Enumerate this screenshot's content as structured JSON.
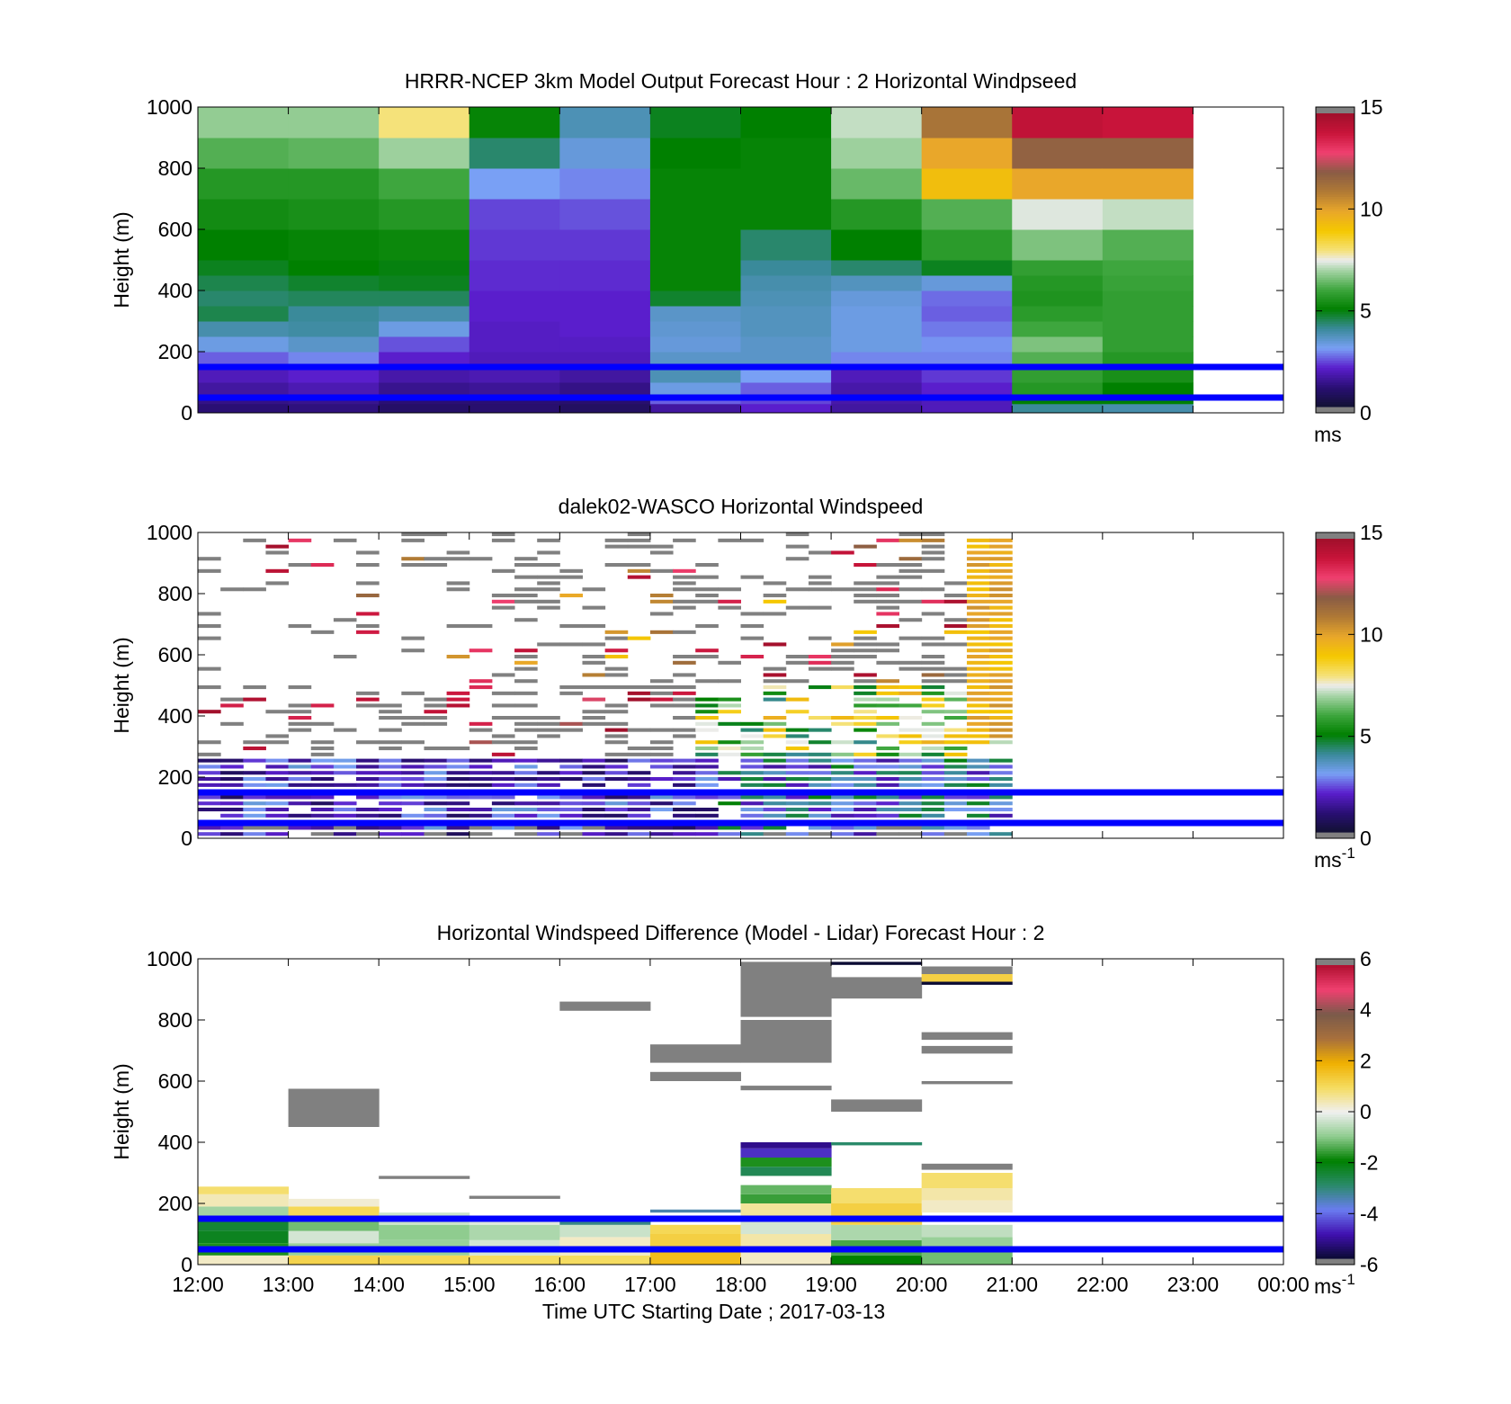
{
  "figure": {
    "x_tick_labels": [
      "12:00",
      "13:00",
      "14:00",
      "15:00",
      "16:00",
      "17:00",
      "18:00",
      "19:00",
      "20:00",
      "21:00",
      "22:00",
      "23:00",
      "00:00"
    ],
    "xlabel": "Time UTC  Starting Date ; 2017-03-13",
    "reference_lines": {
      "heights_m": [
        150,
        50
      ],
      "color": "#0000ff"
    }
  },
  "chart_data": [
    {
      "type": "heatmap",
      "title": "HRRR-NCEP 3km Model Output   Forecast Hour : 2 Horizontal Windpseed",
      "ylabel": "Height (m)",
      "ylim": [
        0,
        1000
      ],
      "y_ticks": [
        0,
        200,
        400,
        600,
        800,
        1000
      ],
      "colorbar": {
        "ticks": [
          0,
          5,
          10,
          15
        ],
        "range": [
          0,
          15
        ],
        "unit": "ms",
        "unit_sup": ""
      },
      "x_hours": [
        12,
        13,
        14,
        15,
        16,
        17,
        18,
        19,
        20,
        21,
        22
      ],
      "height_bins_m": [
        0,
        30,
        60,
        100,
        150,
        200,
        250,
        300,
        350,
        400,
        450,
        500,
        600,
        700,
        800,
        900,
        1000
      ],
      "values": [
        [
          1.0,
          1.2,
          1.5,
          1.8,
          2.5,
          3.2,
          3.8,
          4.5,
          4.3,
          4.5,
          4.8,
          5.0,
          5.3,
          5.6,
          6.2,
          6.8
        ],
        [
          1.1,
          1.3,
          1.7,
          2.0,
          2.8,
          3.5,
          3.9,
          4.0,
          4.4,
          4.7,
          5.0,
          5.1,
          5.4,
          5.6,
          6.3,
          6.8
        ],
        [
          0.8,
          1.0,
          1.3,
          1.6,
          2.0,
          2.4,
          3.2,
          3.8,
          4.4,
          4.8,
          4.9,
          5.2,
          5.6,
          6.0,
          6.9,
          8.0
        ],
        [
          0.9,
          1.0,
          1.4,
          1.7,
          1.8,
          1.9,
          1.9,
          2.0,
          2.0,
          2.1,
          2.1,
          2.2,
          2.3,
          3.0,
          4.3,
          5.1
        ],
        [
          0.7,
          0.9,
          1.2,
          1.5,
          1.8,
          1.9,
          2.0,
          2.0,
          2.0,
          2.1,
          2.1,
          2.2,
          2.4,
          2.8,
          3.3,
          3.7
        ],
        [
          1.5,
          2.5,
          3.2,
          3.7,
          3.5,
          3.3,
          3.4,
          3.5,
          4.7,
          5.1,
          5.1,
          5.1,
          5.1,
          5.1,
          5.0,
          4.8
        ],
        [
          2.0,
          2.3,
          2.5,
          3.0,
          3.5,
          3.5,
          3.6,
          3.6,
          3.7,
          3.8,
          4.0,
          4.3,
          5.1,
          5.1,
          5.1,
          5.0
        ],
        [
          1.5,
          1.6,
          1.6,
          1.8,
          2.8,
          3.2,
          3.2,
          3.2,
          3.3,
          3.6,
          4.3,
          5.0,
          5.6,
          6.4,
          6.9,
          7.2
        ],
        [
          1.8,
          1.8,
          2.0,
          2.2,
          2.8,
          2.9,
          2.7,
          2.5,
          2.6,
          3.3,
          4.8,
          5.7,
          6.2,
          9.3,
          10.0,
          11.2
        ],
        [
          4.0,
          5.0,
          5.6,
          5.8,
          6.2,
          6.6,
          6.0,
          5.7,
          5.5,
          5.6,
          5.8,
          6.6,
          7.4,
          10.0,
          11.8,
          14.2
        ],
        [
          3.8,
          5.0,
          5.0,
          5.4,
          5.6,
          5.8,
          5.8,
          5.8,
          5.8,
          5.9,
          6.0,
          6.2,
          7.2,
          10.0,
          11.8,
          14.0
        ]
      ]
    },
    {
      "type": "heatmap",
      "title": "dalek02-WASCO  Horizontal Windspeed",
      "ylabel": "Height (m)",
      "ylim": [
        0,
        1000
      ],
      "y_ticks": [
        0,
        200,
        400,
        600,
        800,
        1000
      ],
      "colorbar": {
        "ticks": [
          0,
          5,
          10,
          15
        ],
        "range": [
          0,
          15
        ],
        "unit": "ms",
        "unit_sup": "-1"
      },
      "x_range_hours": [
        12,
        20.8
      ],
      "gate_spacing_m": 20
    },
    {
      "type": "heatmap",
      "title": "Horizontal Windspeed Difference (Model - Lidar) Forecast Hour : 2",
      "ylabel": "Height (m)",
      "ylim": [
        0,
        1000
      ],
      "y_ticks": [
        0,
        200,
        400,
        600,
        800,
        1000
      ],
      "colorbar": {
        "ticks": [
          -6,
          -4,
          -2,
          0,
          2,
          4,
          6
        ],
        "range": [
          -6,
          6
        ],
        "unit": "ms",
        "unit_sup": "-1"
      },
      "cells": [
        {
          "t": 12,
          "y0": 0,
          "y1": 30,
          "v": 0.3
        },
        {
          "t": 12,
          "y0": 30,
          "y1": 70,
          "v": -1.8
        },
        {
          "t": 12,
          "y0": 70,
          "y1": 110,
          "v": -2.3
        },
        {
          "t": 12,
          "y0": 110,
          "y1": 150,
          "v": -2.5
        },
        {
          "t": 12,
          "y0": 150,
          "y1": 190,
          "v": -0.8
        },
        {
          "t": 12,
          "y0": 190,
          "y1": 230,
          "v": 0.4
        },
        {
          "t": 12,
          "y0": 230,
          "y1": 255,
          "v": 0.9
        },
        {
          "t": 13,
          "y0": 0,
          "y1": 30,
          "v": 1.2
        },
        {
          "t": 13,
          "y0": 30,
          "y1": 70,
          "v": -0.9
        },
        {
          "t": 13,
          "y0": 70,
          "y1": 110,
          "v": -0.3
        },
        {
          "t": 13,
          "y0": 110,
          "y1": 150,
          "v": -1.2
        },
        {
          "t": 13,
          "y0": 150,
          "y1": 190,
          "v": 1.1
        },
        {
          "t": 13,
          "y0": 190,
          "y1": 215,
          "v": 0.2
        },
        {
          "t": 13,
          "y0": 450,
          "y1": 575,
          "v": 6.5
        },
        {
          "t": 14,
          "y0": 0,
          "y1": 30,
          "v": 1.1
        },
        {
          "t": 14,
          "y0": 30,
          "y1": 80,
          "v": -0.9
        },
        {
          "t": 14,
          "y0": 80,
          "y1": 130,
          "v": -1.0
        },
        {
          "t": 14,
          "y0": 130,
          "y1": 170,
          "v": -0.4
        },
        {
          "t": 14,
          "y0": 280,
          "y1": 290,
          "v": 6.5
        },
        {
          "t": 15,
          "y0": 0,
          "y1": 30,
          "v": 1.0
        },
        {
          "t": 15,
          "y0": 30,
          "y1": 80,
          "v": -0.3
        },
        {
          "t": 15,
          "y0": 80,
          "y1": 130,
          "v": -0.7
        },
        {
          "t": 15,
          "y0": 130,
          "y1": 160,
          "v": -0.2
        },
        {
          "t": 15,
          "y0": 215,
          "y1": 225,
          "v": 6.5
        },
        {
          "t": 16,
          "y0": 0,
          "y1": 30,
          "v": 1.0
        },
        {
          "t": 16,
          "y0": 30,
          "y1": 90,
          "v": 0.3
        },
        {
          "t": 16,
          "y0": 90,
          "y1": 130,
          "v": -0.4
        },
        {
          "t": 16,
          "y0": 130,
          "y1": 160,
          "v": -3.2
        },
        {
          "t": 16,
          "y0": 830,
          "y1": 860,
          "v": 6.5
        },
        {
          "t": 17,
          "y0": 0,
          "y1": 40,
          "v": 1.7
        },
        {
          "t": 17,
          "y0": 40,
          "y1": 100,
          "v": 1.3
        },
        {
          "t": 17,
          "y0": 100,
          "y1": 130,
          "v": 1.1
        },
        {
          "t": 17,
          "y0": 170,
          "y1": 180,
          "v": -3.5
        },
        {
          "t": 17,
          "y0": 600,
          "y1": 630,
          "v": 6.5
        },
        {
          "t": 17,
          "y0": 660,
          "y1": 720,
          "v": 6.5
        },
        {
          "t": 18,
          "y0": 0,
          "y1": 60,
          "v": 0.3
        },
        {
          "t": 18,
          "y0": 60,
          "y1": 100,
          "v": 0.5
        },
        {
          "t": 18,
          "y0": 100,
          "y1": 150,
          "v": -0.3
        },
        {
          "t": 18,
          "y0": 150,
          "y1": 200,
          "v": 0.6
        },
        {
          "t": 18,
          "y0": 200,
          "y1": 230,
          "v": -1.6
        },
        {
          "t": 18,
          "y0": 230,
          "y1": 260,
          "v": -1.3
        },
        {
          "t": 18,
          "y0": 290,
          "y1": 320,
          "v": -2.8
        },
        {
          "t": 18,
          "y0": 320,
          "y1": 350,
          "v": -1.8
        },
        {
          "t": 18,
          "y0": 350,
          "y1": 380,
          "v": -4.7
        },
        {
          "t": 18,
          "y0": 380,
          "y1": 400,
          "v": -5.3
        },
        {
          "t": 18,
          "y0": 570,
          "y1": 585,
          "v": 6.5
        },
        {
          "t": 18,
          "y0": 660,
          "y1": 800,
          "v": 6.5
        },
        {
          "t": 18,
          "y0": 810,
          "y1": 990,
          "v": 6.5
        },
        {
          "t": 19,
          "y0": 0,
          "y1": 30,
          "v": -2.0
        },
        {
          "t": 19,
          "y0": 30,
          "y1": 80,
          "v": -1.5
        },
        {
          "t": 19,
          "y0": 80,
          "y1": 130,
          "v": -0.7
        },
        {
          "t": 19,
          "y0": 130,
          "y1": 200,
          "v": 1.3
        },
        {
          "t": 19,
          "y0": 200,
          "y1": 250,
          "v": 0.9
        },
        {
          "t": 19,
          "y0": 390,
          "y1": 400,
          "v": -3.0
        },
        {
          "t": 19,
          "y0": 500,
          "y1": 540,
          "v": 6.5
        },
        {
          "t": 19,
          "y0": 870,
          "y1": 940,
          "v": 6.5
        },
        {
          "t": 19,
          "y0": 980,
          "y1": 990,
          "v": -6.0
        },
        {
          "t": 20,
          "y0": 0,
          "y1": 40,
          "v": -1.2
        },
        {
          "t": 20,
          "y0": 40,
          "y1": 90,
          "v": -0.9
        },
        {
          "t": 20,
          "y0": 90,
          "y1": 130,
          "v": -0.5
        },
        {
          "t": 20,
          "y0": 170,
          "y1": 210,
          "v": 0.3
        },
        {
          "t": 20,
          "y0": 210,
          "y1": 250,
          "v": 0.5
        },
        {
          "t": 20,
          "y0": 250,
          "y1": 300,
          "v": 0.9
        },
        {
          "t": 20,
          "y0": 310,
          "y1": 330,
          "v": 6.5
        },
        {
          "t": 20,
          "y0": 590,
          "y1": 600,
          "v": 6.5
        },
        {
          "t": 20,
          "y0": 690,
          "y1": 715,
          "v": 6.5
        },
        {
          "t": 20,
          "y0": 735,
          "y1": 760,
          "v": 6.5
        },
        {
          "t": 20,
          "y0": 915,
          "y1": 925,
          "v": -6.0
        },
        {
          "t": 20,
          "y0": 925,
          "y1": 950,
          "v": 1.3
        },
        {
          "t": 20,
          "y0": 950,
          "y1": 975,
          "v": 6.5
        }
      ]
    }
  ],
  "colors": {
    "speed_scale": [
      [
        0,
        "#111133"
      ],
      [
        1,
        "#2a0f74"
      ],
      [
        2,
        "#5a1ecc"
      ],
      [
        3,
        "#79a0f5"
      ],
      [
        4,
        "#3a8a9a"
      ],
      [
        5,
        "#008000"
      ],
      [
        6,
        "#3ea63e"
      ],
      [
        7,
        "#a8d5a8"
      ],
      [
        7.5,
        "#ececec"
      ],
      [
        8,
        "#f5e27a"
      ],
      [
        9,
        "#f5c800"
      ],
      [
        10,
        "#e9a72a"
      ],
      [
        11,
        "#b07a35"
      ],
      [
        12,
        "#8a5c45"
      ],
      [
        13,
        "#f04070"
      ],
      [
        14,
        "#c8143a"
      ],
      [
        15,
        "#a0102b"
      ]
    ],
    "diff_scale": [
      [
        -6,
        "#0a0a33"
      ],
      [
        -5,
        "#4010b0"
      ],
      [
        -4,
        "#6a7cf0"
      ],
      [
        -3,
        "#2a8a6a"
      ],
      [
        -2,
        "#008000"
      ],
      [
        -1,
        "#8fcc8f"
      ],
      [
        0,
        "#f0f0f0"
      ],
      [
        1,
        "#f5dc60"
      ],
      [
        2,
        "#f0b000"
      ],
      [
        3,
        "#a8703c"
      ],
      [
        4,
        "#7a5a4a"
      ],
      [
        5,
        "#f04070"
      ],
      [
        6,
        "#b01030"
      ]
    ],
    "below_range": "#808080",
    "above_range": "#808080"
  }
}
